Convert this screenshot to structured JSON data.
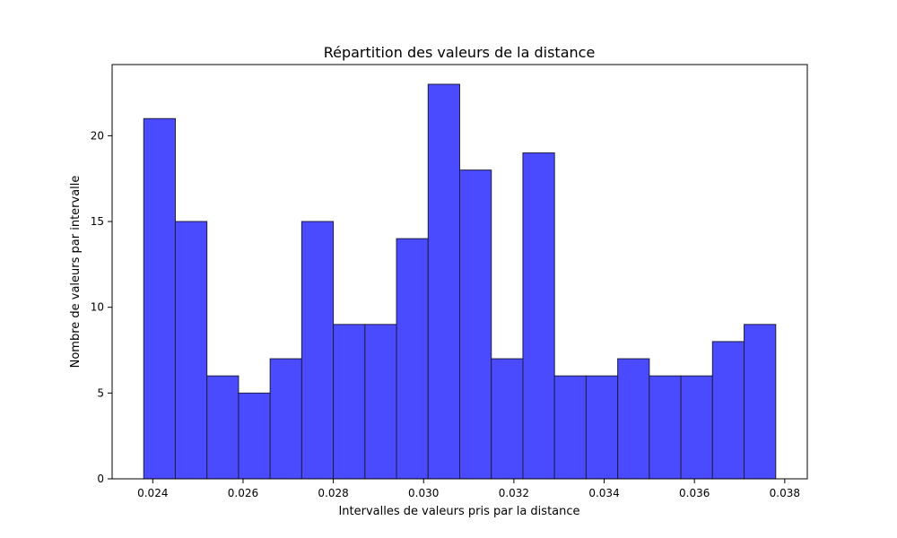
{
  "chart_data": {
    "type": "bar",
    "title": "Répartition des valeurs de la distance",
    "xlabel": "Intervalles de valeurs pris par la distance",
    "ylabel": "Nombre de valeurs par intervalle",
    "bin_edges": [
      0.0238,
      0.0245,
      0.0252,
      0.0259,
      0.0266,
      0.0273,
      0.028,
      0.0287,
      0.0294,
      0.0301,
      0.0308,
      0.0315,
      0.0322,
      0.0329,
      0.0336,
      0.0343,
      0.035,
      0.0357,
      0.0364,
      0.0371,
      0.0378
    ],
    "values": [
      21,
      15,
      6,
      5,
      7,
      15,
      9,
      9,
      14,
      23,
      18,
      7,
      19,
      6,
      6,
      7,
      6,
      6,
      8,
      9
    ],
    "xlim": [
      0.0231,
      0.0385
    ],
    "ylim": [
      0,
      24.15
    ],
    "x_ticks": [
      0.024,
      0.026,
      0.028,
      0.03,
      0.032,
      0.034,
      0.036,
      0.038
    ],
    "x_tick_labels": [
      "0.024",
      "0.026",
      "0.028",
      "0.030",
      "0.032",
      "0.034",
      "0.036",
      "0.038"
    ],
    "y_ticks": [
      0,
      5,
      10,
      15,
      20
    ],
    "y_tick_labels": [
      "0",
      "5",
      "10",
      "15",
      "20"
    ],
    "grid": false,
    "bar_color": "#4a4aff",
    "bar_edge_color": "#1f1f3f"
  }
}
